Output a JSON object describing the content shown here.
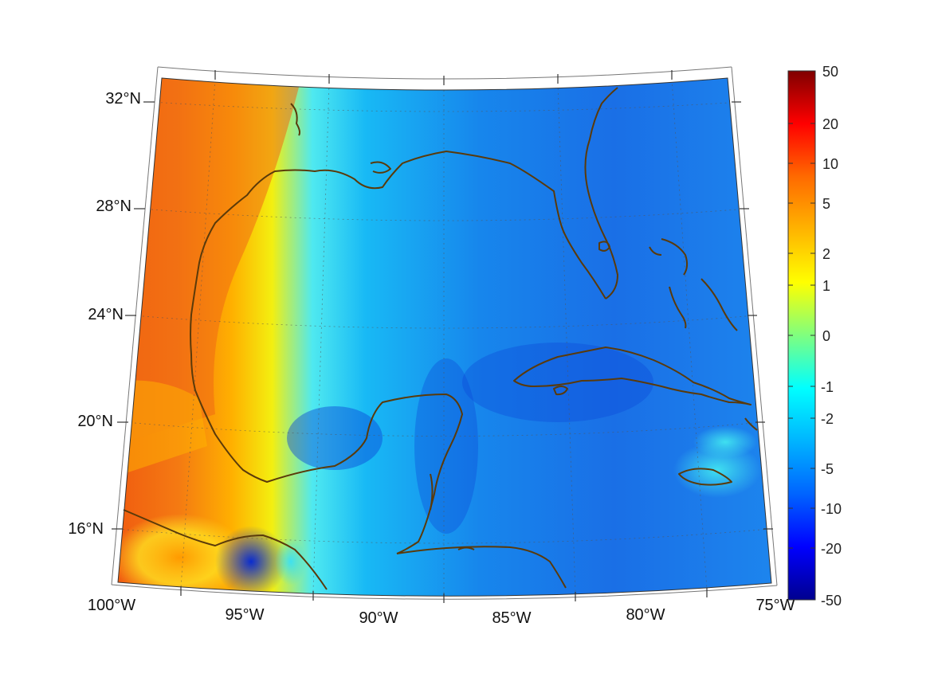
{
  "map": {
    "projection": "conic",
    "lon_range": [
      -100,
      -75
    ],
    "lat_range": [
      14,
      33
    ],
    "graticule": "dotted",
    "field_description_colors": {
      "strong_positive": "#e8460f",
      "zero": "#7fff7f",
      "negative": "#1e7bf0",
      "coast": "#5a3a0a"
    },
    "lon_labels": [
      "100°W",
      "95°W",
      "90°W",
      "85°W",
      "80°W",
      "75°W"
    ],
    "lat_labels": [
      "16°N",
      "20°N",
      "24°N",
      "28°N",
      "32°N"
    ]
  },
  "colorbar": {
    "ticks": [
      "50",
      "20",
      "10",
      "5",
      "2",
      "1",
      "0",
      "-1",
      "-2",
      "-5",
      "-10",
      "-20",
      "-50"
    ],
    "colors_top_to_bottom": [
      "#7f0000",
      "#ff0000",
      "#ff6a00",
      "#ffb400",
      "#ffff00",
      "#7fff7f",
      "#00ffff",
      "#00b4ff",
      "#0064ff",
      "#0000ff",
      "#00008f"
    ]
  }
}
